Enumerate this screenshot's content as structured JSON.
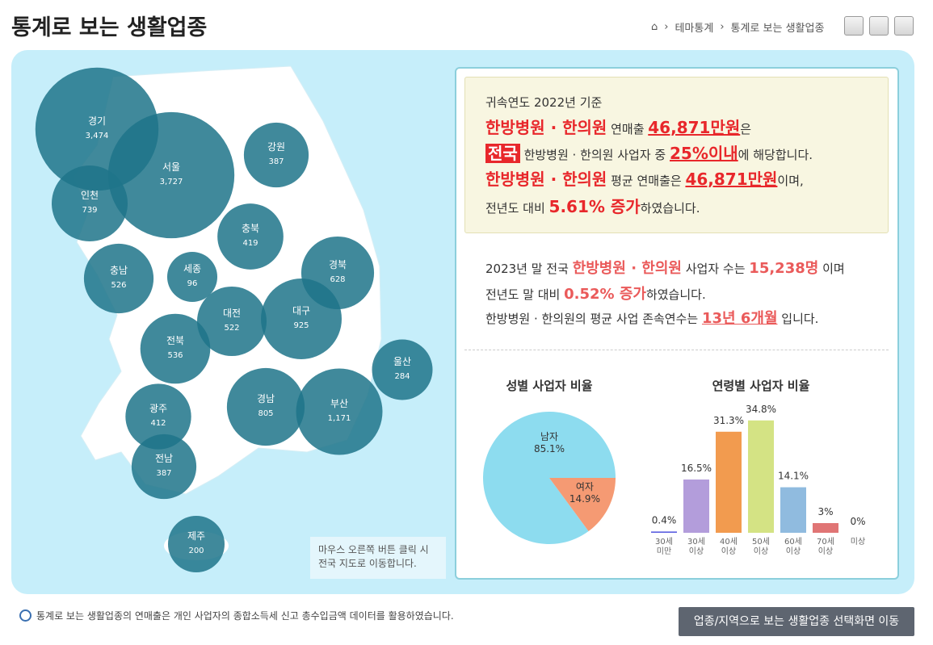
{
  "header": {
    "title": "통계로 보는 생활업종",
    "breadcrumb": [
      "테마통계",
      "통계로 보는 생활업종"
    ]
  },
  "map_hint": [
    "마우스 오른쪽 버튼 클릭 시",
    "전국 지도로 이동합니다."
  ],
  "summary": {
    "basis": "귀속연도 2022년 기준",
    "line1": [
      "한방병원 · 한의원",
      " 연매출 ",
      "46,871만원",
      "은"
    ],
    "line2": [
      "전국",
      " 한방병원 · 한의원 사업자 중 ",
      "25%이내",
      "에 해당합니다."
    ],
    "line3": [
      "한방병원 · 한의원",
      " 평균 연매출은 ",
      "46,871만원",
      "이며,"
    ],
    "line4": [
      "전년도 대비 ",
      "5.61% 증가",
      "하였습니다."
    ]
  },
  "detail": {
    "line1": [
      "2023년 말 전국 ",
      "한방병원 · 한의원",
      " 사업자 수는 ",
      "15,238명",
      " 이며"
    ],
    "line2": [
      "전년도 말 대비 ",
      "0.52% 증가",
      "하였습니다."
    ],
    "line3": [
      "한방병원 · 한의원의 평균 사업 존속연수는 ",
      "13년 6개월",
      " 입니다."
    ]
  },
  "chart_data": [
    {
      "type": "bubble",
      "color": "#1f7489",
      "categories": [
        "경기",
        "서울",
        "인천",
        "강원",
        "충북",
        "충남",
        "세종",
        "경북",
        "대전",
        "대구",
        "전북",
        "울산",
        "경남",
        "부산",
        "광주",
        "전남",
        "제주"
      ],
      "values": [
        3474,
        3727,
        739,
        387,
        419,
        526,
        96,
        628,
        522,
        925,
        536,
        284,
        805,
        1171,
        412,
        387,
        200
      ],
      "value_labels": [
        "3,474",
        "3,727",
        "739",
        "387",
        "419",
        "526",
        "96",
        "628",
        "522",
        "925",
        "536",
        "284",
        "805",
        "1,171",
        "412",
        "387",
        "200"
      ]
    },
    {
      "type": "pie",
      "title": "성별 사업자 비율",
      "categories": [
        "남자",
        "여자"
      ],
      "values": [
        85.1,
        14.9
      ],
      "value_labels": [
        "85.1%",
        "14.9%"
      ],
      "colors": [
        "#8ddcef",
        "#f59a73"
      ]
    },
    {
      "type": "bar",
      "title": "연령별 사업자 비율",
      "categories": [
        "30세 미만",
        "30세 이상",
        "40세 이상",
        "50세 이상",
        "60세 이상",
        "70세 이상",
        "미상"
      ],
      "values": [
        0.4,
        16.5,
        31.3,
        34.8,
        14.1,
        3,
        0
      ],
      "value_labels": [
        "0.4%",
        "16.5%",
        "31.3%",
        "34.8%",
        "14.1%",
        "3%",
        "0%"
      ],
      "colors": [
        "#5b5ee0",
        "#b39ddb",
        "#f29b4f",
        "#d4e384",
        "#90bbdf",
        "#e07575",
        "#cccccc"
      ]
    }
  ],
  "footer": {
    "note": "통계로 보는 생활업종의 연매출은 개인 사업자의 종합소득세 신고 총수입금액 데이터를 활용하였습니다.",
    "button": "업종/지역으로 보는 생활업종 선택화면 이동"
  }
}
